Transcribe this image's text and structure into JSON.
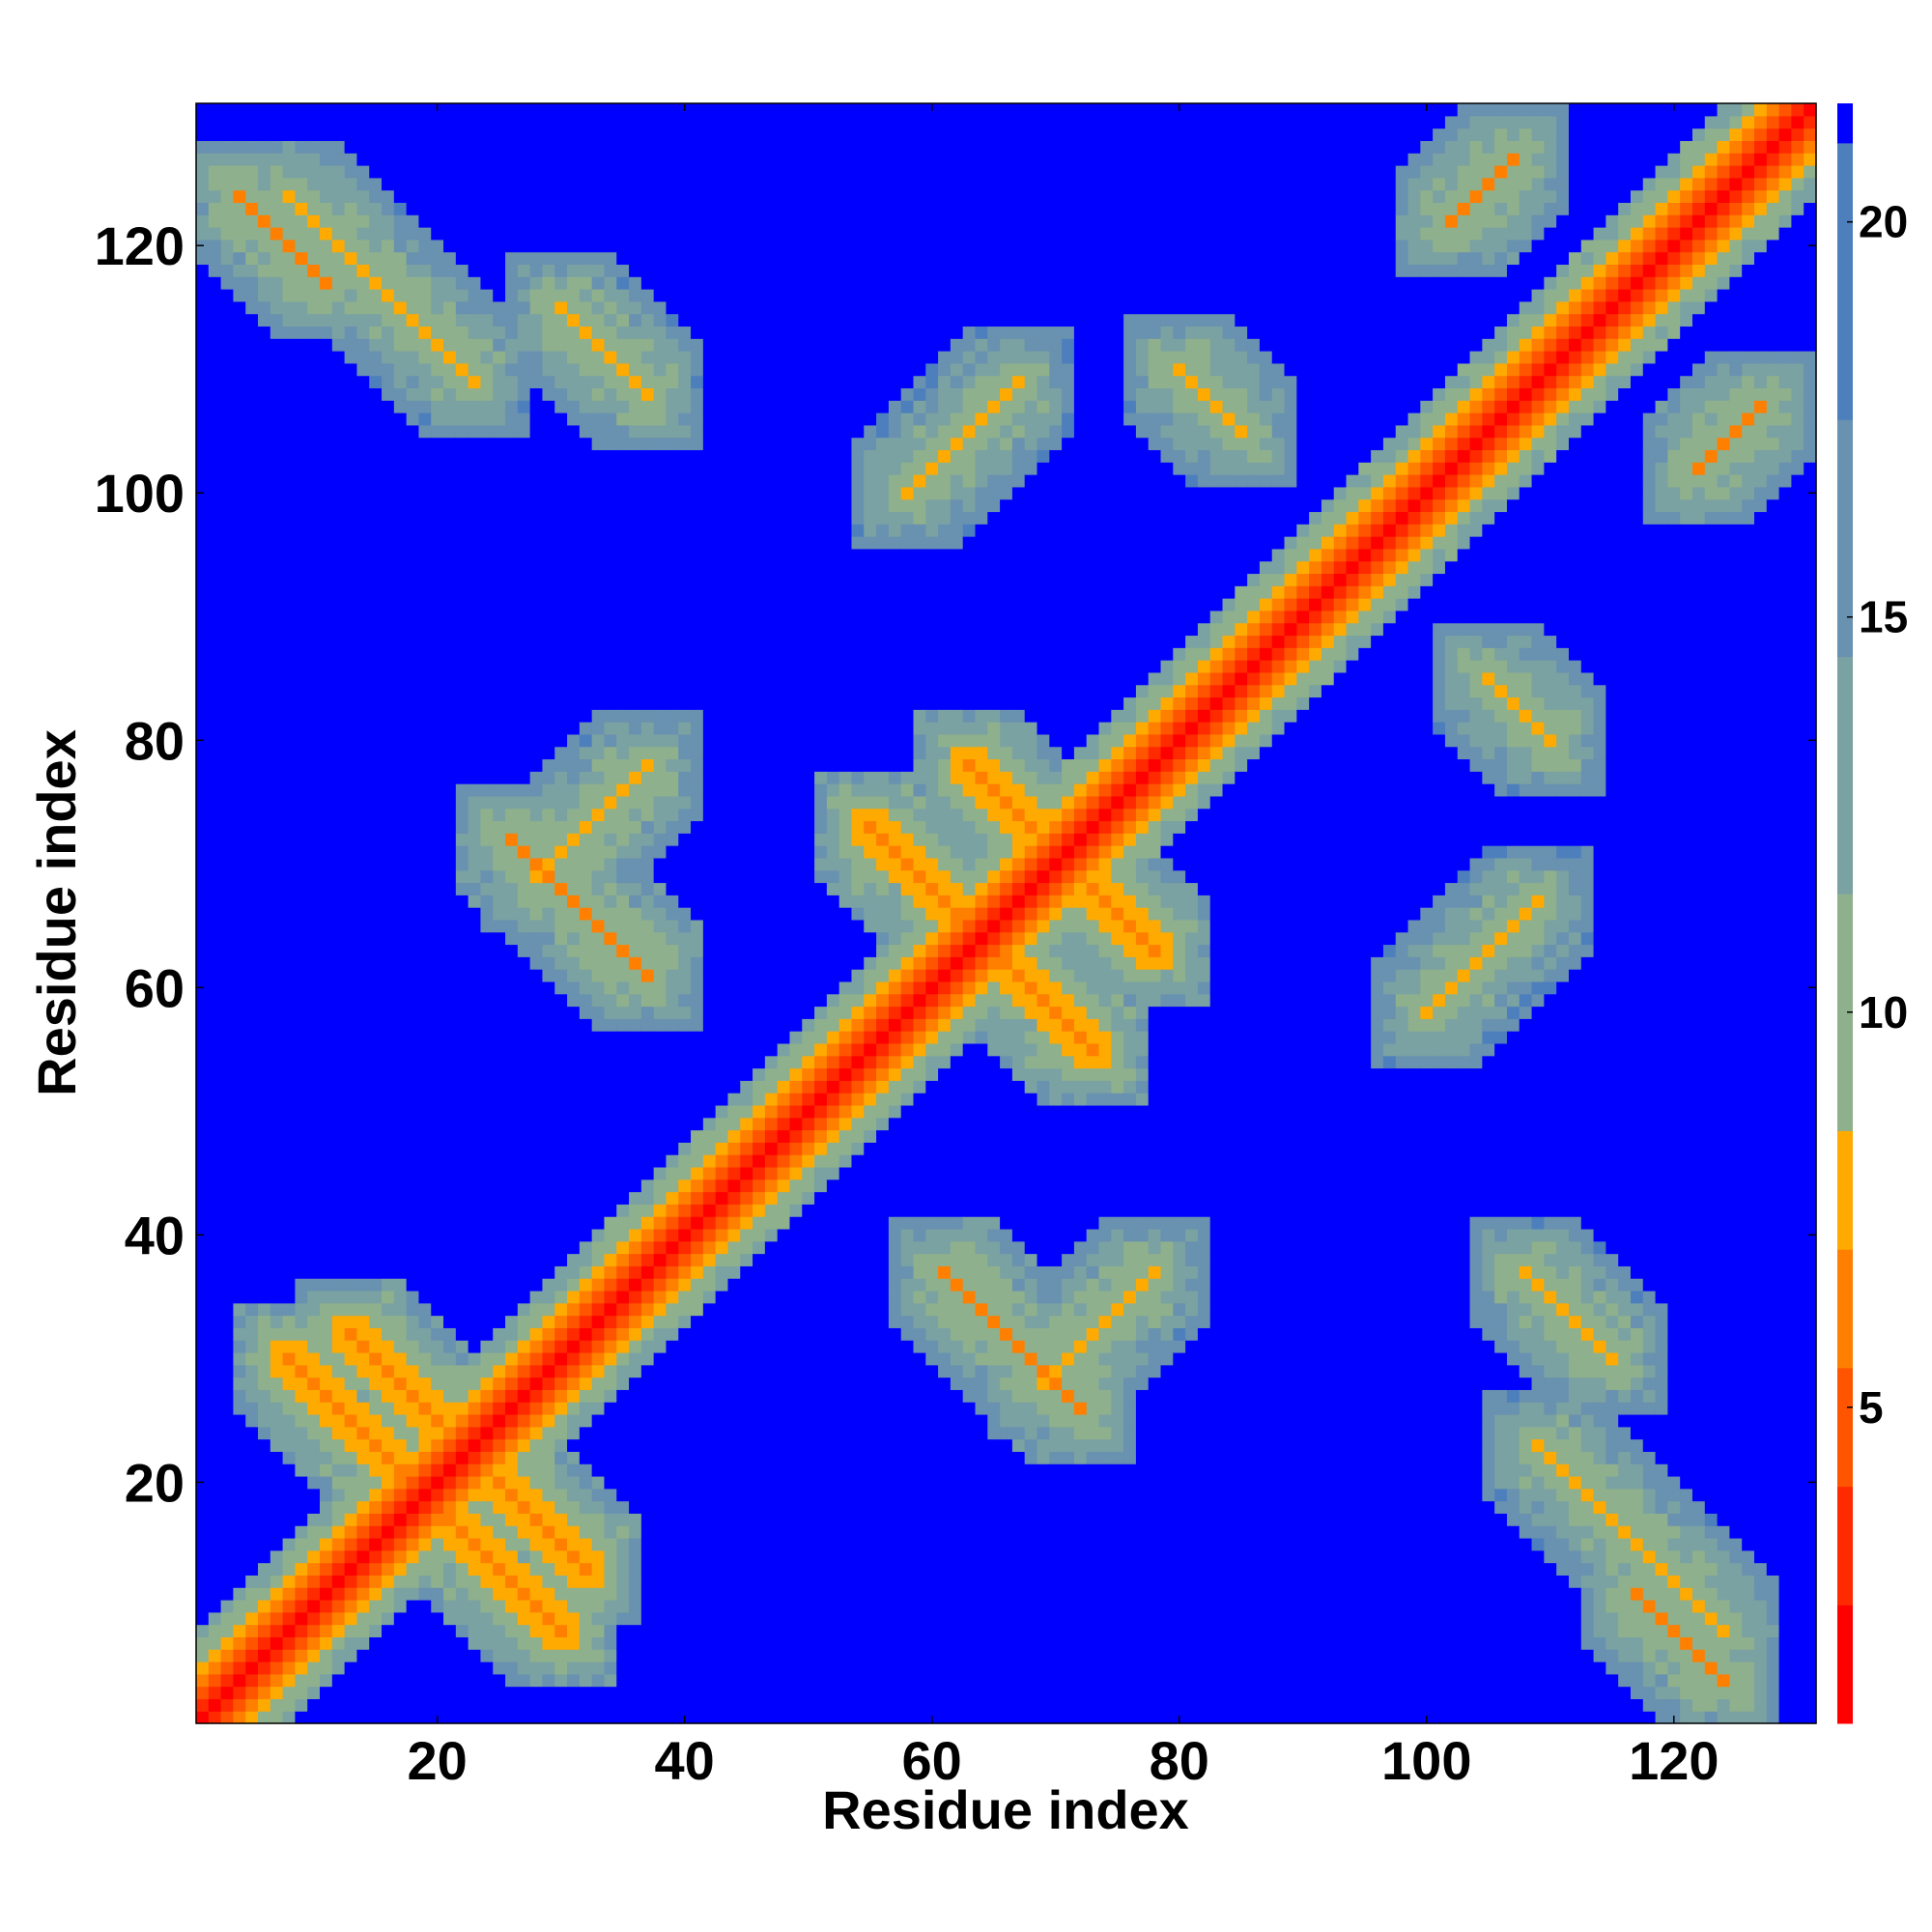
{
  "chart_data": {
    "type": "heatmap",
    "title": "",
    "xlabel": "Residue index",
    "ylabel": "Residue index",
    "n_residues": 131,
    "xlim": [
      1,
      131
    ],
    "ylim": [
      1,
      131
    ],
    "x_ticks": [
      20,
      40,
      60,
      80,
      100,
      120
    ],
    "y_ticks": [
      20,
      40,
      60,
      80,
      100,
      120
    ],
    "x_tick_labels": [
      "20",
      "40",
      "60",
      "80",
      "100",
      "120"
    ],
    "y_tick_labels": [
      "20",
      "40",
      "60",
      "80",
      "100",
      "120"
    ],
    "value_range": [
      1,
      21.5
    ],
    "grid": false,
    "legend": "colorbar-right",
    "colorbar": {
      "ticks": [
        5,
        10,
        15,
        20
      ],
      "labels": [
        "5",
        "10",
        "15",
        "20"
      ],
      "colors": [
        "#ff0000",
        "#ff2a00",
        "#ff5500",
        "#ff7f00",
        "#ffaa00",
        "#8fb08c",
        "#7aa2a2",
        "#6991b0",
        "#4d7fbd",
        "#0000ff"
      ],
      "boundaries": [
        1,
        2.5,
        4,
        5.5,
        7,
        8.5,
        11.5,
        14.5,
        17.5,
        21,
        21.5
      ]
    },
    "contact_features": [
      {
        "type": "diagonal",
        "i": 1,
        "j": 131,
        "value": 1.5
      },
      {
        "type": "antiparallel",
        "i": 8,
        "j": 30,
        "length": 12,
        "value": 5.5
      },
      {
        "type": "antiparallel",
        "i": 13,
        "j": 32,
        "length": 10,
        "value": 5.5
      },
      {
        "type": "antiparallel",
        "i": 55,
        "j": 73,
        "length": 9,
        "value": 5.5
      },
      {
        "type": "antiparallel",
        "i": 63,
        "j": 78,
        "length": 6,
        "value": 5.5
      },
      {
        "type": "antiparallel",
        "i": 26,
        "j": 72,
        "length": 12,
        "value": 6.5
      },
      {
        "type": "antiparallel",
        "i": 30,
        "j": 115,
        "length": 8,
        "value": 7.0
      },
      {
        "type": "antiparallel",
        "i": 80,
        "j": 110,
        "length": 6,
        "value": 7.0
      },
      {
        "type": "antiparallel",
        "i": 4,
        "j": 124,
        "length": 8,
        "value": 6.5
      },
      {
        "type": "antiparallel",
        "i": 8,
        "j": 124,
        "length": 16,
        "value": 7.0
      },
      {
        "type": "parallel",
        "i": 28,
        "j": 69,
        "length": 10,
        "value": 7.0
      },
      {
        "type": "parallel",
        "i": 58,
        "j": 100,
        "length": 10,
        "value": 7.5
      },
      {
        "type": "parallel",
        "i": 102,
        "j": 122,
        "length": 6,
        "value": 6.5
      }
    ]
  }
}
